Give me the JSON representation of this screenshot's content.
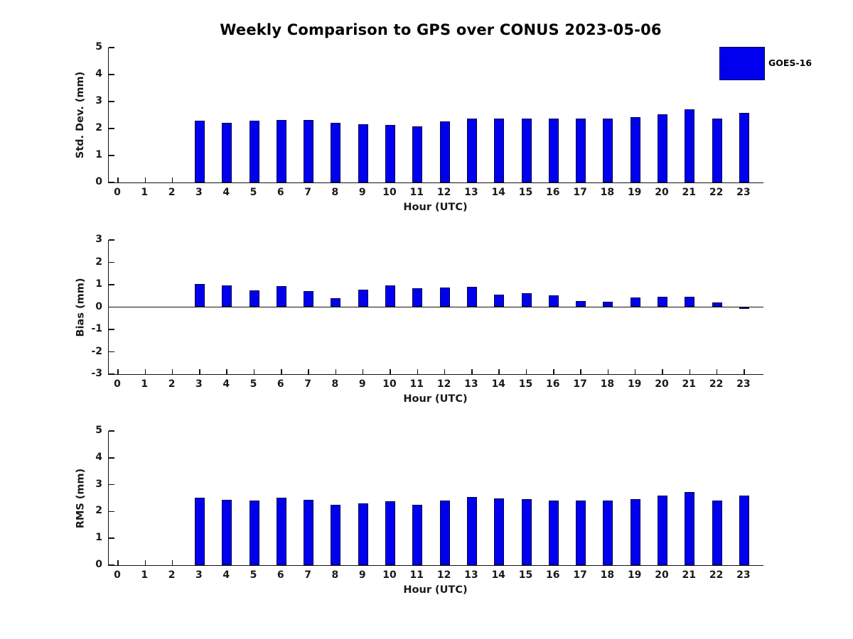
{
  "title": "Weekly Comparison to GPS over CONUS 2023-05-06",
  "legend": {
    "label": "GOES-16"
  },
  "colors": {
    "bar_fill": "#0000EE",
    "bar_edge": "#00004D",
    "axis": "#111111",
    "text": "#1a1a1a"
  },
  "chart_data": [
    {
      "type": "bar",
      "series_name": "GOES-16",
      "ylabel": "Std. Dev. (mm)",
      "xlabel": "Hour (UTC)",
      "ylim": [
        0,
        5
      ],
      "yticks": [
        0,
        1,
        2,
        3,
        4,
        5
      ],
      "x": [
        0,
        1,
        2,
        3,
        4,
        5,
        6,
        7,
        8,
        9,
        10,
        11,
        12,
        13,
        14,
        15,
        16,
        17,
        18,
        19,
        20,
        21,
        22,
        23
      ],
      "values": [
        null,
        null,
        null,
        2.28,
        2.22,
        2.29,
        2.32,
        2.32,
        2.2,
        2.17,
        2.14,
        2.09,
        2.26,
        2.36,
        2.38,
        2.36,
        2.37,
        2.38,
        2.38,
        2.42,
        2.53,
        2.7,
        2.38,
        2.58
      ]
    },
    {
      "type": "bar",
      "series_name": "GOES-16",
      "ylabel": "Bias (mm)",
      "xlabel": "Hour (UTC)",
      "ylim": [
        -3,
        3
      ],
      "yticks": [
        -3,
        -2,
        -1,
        0,
        1,
        2,
        3
      ],
      "zero_line": true,
      "x": [
        0,
        1,
        2,
        3,
        4,
        5,
        6,
        7,
        8,
        9,
        10,
        11,
        12,
        13,
        14,
        15,
        16,
        17,
        18,
        19,
        20,
        21,
        22,
        23
      ],
      "values": [
        null,
        null,
        null,
        1.03,
        0.97,
        0.76,
        0.94,
        0.72,
        0.39,
        0.79,
        0.97,
        0.84,
        0.88,
        0.9,
        0.56,
        0.63,
        0.51,
        0.28,
        0.24,
        0.42,
        0.47,
        0.47,
        0.21,
        -0.05
      ]
    },
    {
      "type": "bar",
      "series_name": "GOES-16",
      "ylabel": "RMS (mm)",
      "xlabel": "Hour (UTC)",
      "ylim": [
        0,
        5
      ],
      "yticks": [
        0,
        1,
        2,
        3,
        4,
        5
      ],
      "x": [
        0,
        1,
        2,
        3,
        4,
        5,
        6,
        7,
        8,
        9,
        10,
        11,
        12,
        13,
        14,
        15,
        16,
        17,
        18,
        19,
        20,
        21,
        22,
        23
      ],
      "values": [
        null,
        null,
        null,
        2.51,
        2.43,
        2.41,
        2.51,
        2.43,
        2.25,
        2.3,
        2.38,
        2.25,
        2.4,
        2.54,
        2.48,
        2.46,
        2.41,
        2.41,
        2.41,
        2.47,
        2.6,
        2.72,
        2.4,
        2.59
      ]
    }
  ]
}
